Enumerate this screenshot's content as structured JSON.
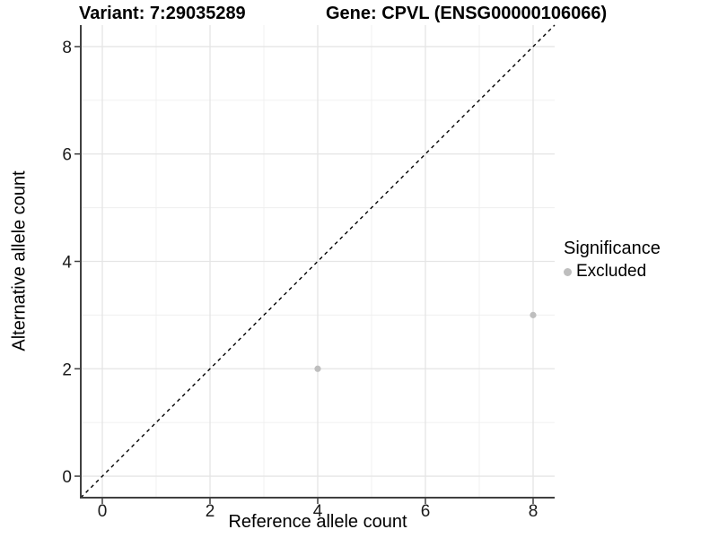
{
  "chart_data": {
    "type": "scatter",
    "titles": {
      "variant": "Variant: 7:29035289",
      "gene": "Gene: CPVL (ENSG00000106066)"
    },
    "xlabel": "Reference allele count",
    "ylabel": "Alternative allele count",
    "xlim": [
      -0.4,
      8.4
    ],
    "ylim": [
      -0.4,
      8.4
    ],
    "x_major_ticks": [
      0,
      2,
      4,
      6,
      8
    ],
    "y_major_ticks": [
      0,
      2,
      4,
      6,
      8
    ],
    "x_minor_gridlines": [
      1,
      3,
      5,
      7
    ],
    "y_minor_gridlines": [
      1,
      3,
      5,
      7
    ],
    "grid": true,
    "identity_line": {
      "equation": "y = x",
      "style": "dashed",
      "color": "#000000"
    },
    "series": [
      {
        "name": "Excluded",
        "color": "#bebebe",
        "points": [
          {
            "x": 4,
            "y": 2
          },
          {
            "x": 8,
            "y": 3
          }
        ]
      }
    ],
    "legend": {
      "position": "right",
      "title": "Significance",
      "items": [
        {
          "label": "Excluded",
          "color": "#bebebe"
        }
      ]
    },
    "colors": {
      "background": "#ffffff",
      "grid_major": "#e5e5e5",
      "grid_minor": "#efefef",
      "axis_line": "#404040",
      "tick_text": "#1a1a1a",
      "point": "#bebebe"
    }
  }
}
